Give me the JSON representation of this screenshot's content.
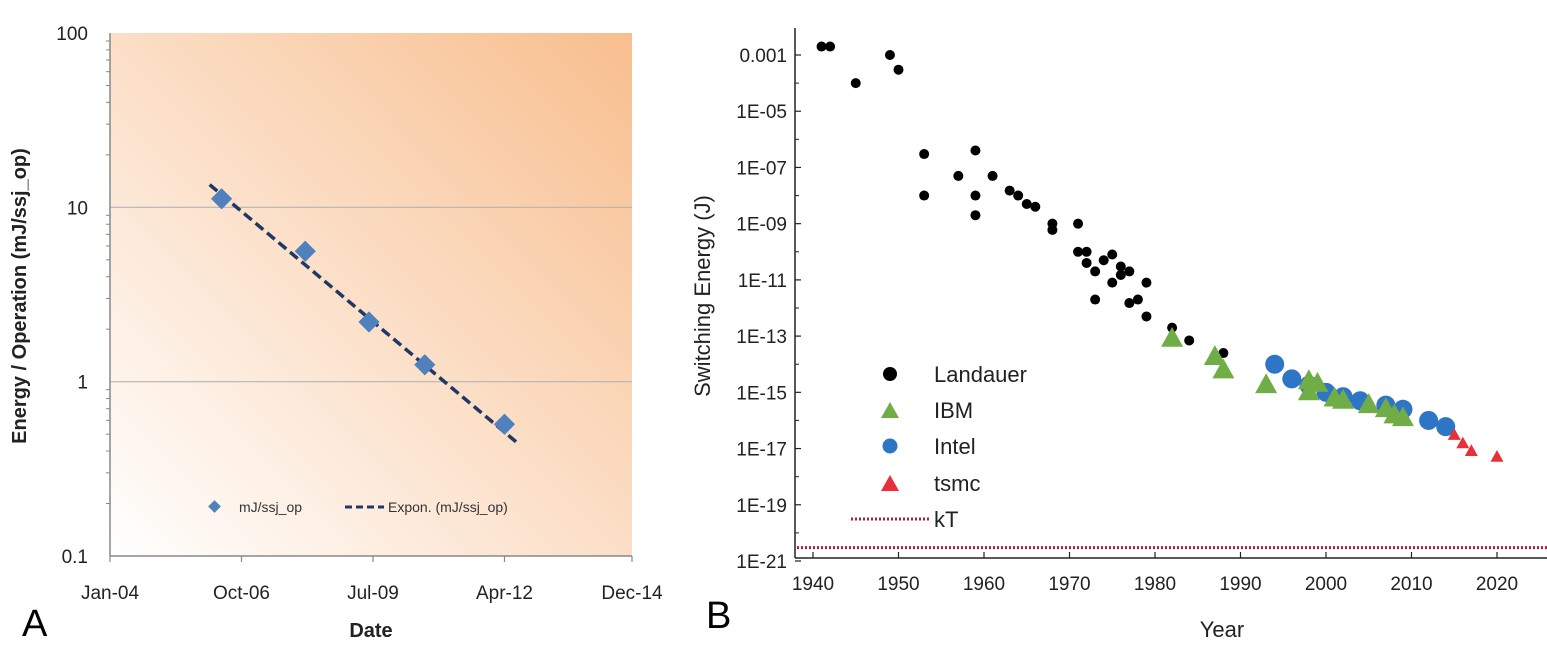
{
  "panel_labels": {
    "a": "A",
    "b": "B"
  },
  "chart_data": [
    {
      "type": "scatter",
      "panel": "A",
      "title": "",
      "xlabel": "Date",
      "ylabel": "Energy / Operation (mJ/ssj_op)",
      "yscale": "log",
      "ylim": [
        0.1,
        100
      ],
      "yticks": [
        "100",
        "10",
        "1",
        "0.1"
      ],
      "yticks_values": [
        100,
        10,
        1,
        0.1
      ],
      "xlim": [
        "2004-01",
        "2014-12"
      ],
      "xticks": [
        "Jan-04",
        "Oct-06",
        "Jul-09",
        "Apr-12",
        "Dec-14"
      ],
      "xticks_dates": [
        "2004-01",
        "2006-10",
        "2009-07",
        "2012-04",
        "2014-12"
      ],
      "grid": "horizontal",
      "background": "gradient white to orange",
      "colors": {
        "marker": "#4f81bd",
        "trend": "#1f3864",
        "bg_light": "#ffffff",
        "bg_dark": "#f8be8e"
      },
      "series": [
        {
          "name": "mJ/ssj_op",
          "marker": "diamond",
          "points": [
            {
              "x": "2006-05",
              "y": 11.2
            },
            {
              "x": "2008-02",
              "y": 5.6
            },
            {
              "x": "2009-06",
              "y": 2.2
            },
            {
              "x": "2010-08",
              "y": 1.25
            },
            {
              "x": "2012-04",
              "y": 0.57
            }
          ]
        },
        {
          "name": "Expon. (mJ/ssj_op)",
          "style": "dashed",
          "points": [
            {
              "x": "2006-02",
              "y": 13.5
            },
            {
              "x": "2012-07",
              "y": 0.45
            }
          ]
        }
      ],
      "legend": [
        "mJ/ssj_op",
        "Expon. (mJ/ssj_op)"
      ],
      "legend_position": "bottom-right"
    },
    {
      "type": "scatter",
      "panel": "B",
      "title": "",
      "xlabel": "Year",
      "ylabel": "Switching Energy (J)",
      "yscale": "log",
      "ylim": [
        1e-21,
        0.01
      ],
      "yticks": [
        "0.001",
        "1E-05",
        "1E-07",
        "1E-09",
        "1E-11",
        "1E-13",
        "1E-15",
        "1E-17",
        "1E-19",
        "1E-21"
      ],
      "yticks_values": [
        0.001,
        1e-05,
        1e-07,
        1e-09,
        1e-11,
        1e-13,
        1e-15,
        1e-17,
        1e-19,
        1e-21
      ],
      "xlim": [
        1940,
        2027
      ],
      "xticks": [
        "1940",
        "1950",
        "1960",
        "1970",
        "1980",
        "1990",
        "2000",
        "2010",
        "2020"
      ],
      "xticks_values": [
        1940,
        1950,
        1960,
        1970,
        1980,
        1990,
        2000,
        2010,
        2020
      ],
      "legend_position": "center-left",
      "colors": {
        "Landauer": "#000000",
        "IBM": "#70ad47",
        "Intel": "#2e75c6",
        "tsmc": "#e8303a",
        "kT": "#b01e3e"
      },
      "series": [
        {
          "name": "Landauer",
          "marker": "circle",
          "points": [
            [
              1941,
              0.002
            ],
            [
              1942,
              0.002
            ],
            [
              1945,
              0.0001
            ],
            [
              1949,
              0.001
            ],
            [
              1950,
              0.0003
            ],
            [
              1953,
              3e-07
            ],
            [
              1953,
              1e-08
            ],
            [
              1957,
              5e-08
            ],
            [
              1959,
              4e-07
            ],
            [
              1959,
              1e-08
            ],
            [
              1959,
              2e-09
            ],
            [
              1961,
              5e-08
            ],
            [
              1963,
              1.5e-08
            ],
            [
              1964,
              1e-08
            ],
            [
              1965,
              5e-09
            ],
            [
              1966,
              4e-09
            ],
            [
              1968,
              1e-09
            ],
            [
              1968,
              6e-10
            ],
            [
              1971,
              1e-09
            ],
            [
              1971,
              1e-10
            ],
            [
              1972,
              1e-10
            ],
            [
              1972,
              4e-11
            ],
            [
              1973,
              2e-11
            ],
            [
              1973,
              2e-12
            ],
            [
              1974,
              5e-11
            ],
            [
              1975,
              8e-11
            ],
            [
              1975,
              8e-12
            ],
            [
              1976,
              3e-11
            ],
            [
              1976,
              1.5e-11
            ],
            [
              1977,
              2e-11
            ],
            [
              1977,
              1.5e-12
            ],
            [
              1978,
              2e-12
            ],
            [
              1979,
              8e-12
            ],
            [
              1979,
              5e-13
            ],
            [
              1982,
              2e-13
            ],
            [
              1984,
              7e-14
            ],
            [
              1988,
              2.5e-14
            ]
          ]
        },
        {
          "name": "IBM",
          "marker": "triangle",
          "points": [
            [
              1982,
              8e-14
            ],
            [
              1987,
              1.8e-14
            ],
            [
              1988,
              6e-15
            ],
            [
              1993,
              1.8e-15
            ],
            [
              1998,
              2.5e-15
            ],
            [
              1998,
              1e-15
            ],
            [
              1999,
              2e-15
            ],
            [
              2001,
              6e-16
            ],
            [
              2002,
              5e-16
            ],
            [
              2005,
              3.5e-16
            ],
            [
              2007,
              2.5e-16
            ],
            [
              2008,
              1.5e-16
            ],
            [
              2009,
              1.2e-16
            ]
          ]
        },
        {
          "name": "Intel",
          "marker": "circle",
          "points": [
            [
              1994,
              1e-14
            ],
            [
              1996,
              3e-15
            ],
            [
              1998,
              1.8e-15
            ],
            [
              2000,
              1e-15
            ],
            [
              2002,
              7e-16
            ],
            [
              2004,
              5e-16
            ],
            [
              2007,
              3.5e-16
            ],
            [
              2009,
              2.5e-16
            ],
            [
              2012,
              1e-16
            ],
            [
              2014,
              6e-17
            ]
          ]
        },
        {
          "name": "tsmc",
          "marker": "triangle",
          "points": [
            [
              2015,
              3e-17
            ],
            [
              2016,
              1.5e-17
            ],
            [
              2017,
              8e-18
            ],
            [
              2020,
              5e-18
            ]
          ]
        },
        {
          "name": "kT",
          "style": "dotted",
          "y": 3e-21
        }
      ],
      "legend": [
        "Landauer",
        "IBM",
        "Intel",
        "tsmc",
        "kT"
      ]
    }
  ]
}
